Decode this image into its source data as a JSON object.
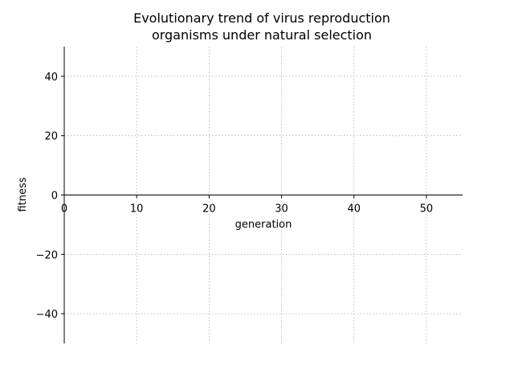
{
  "chart_data": {
    "type": "line",
    "title_lines": [
      "Evolutionary trend of virus reproduction",
      "organisms under natural selection"
    ],
    "xlabel": "generation",
    "ylabel": "fitness",
    "xlim": [
      0,
      55
    ],
    "ylim": [
      -50,
      50
    ],
    "xticks": [
      0,
      10,
      20,
      30,
      40,
      50
    ],
    "yticks": [
      -40,
      -20,
      0,
      20,
      40
    ],
    "xtick_labels": [
      "0",
      "10",
      "20",
      "30",
      "40",
      "50"
    ],
    "ytick_labels": [
      "−40",
      "−20",
      "0",
      "20",
      "40"
    ],
    "grid": true,
    "series": []
  }
}
